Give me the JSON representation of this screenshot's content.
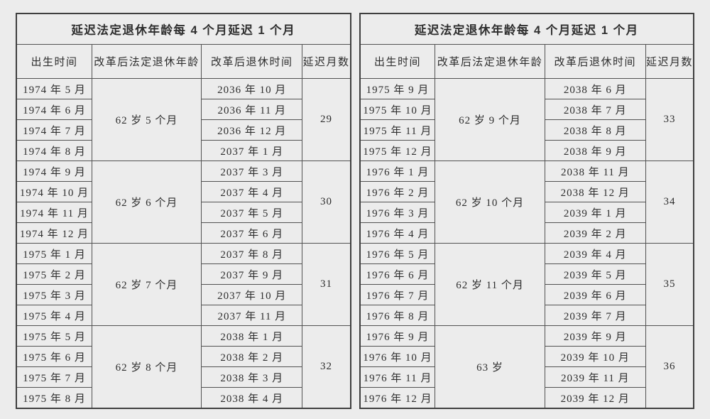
{
  "page": {
    "background_color": "#ececec",
    "border_color": "#3f3f3f",
    "text_color": "#2e2e2e"
  },
  "tables": [
    {
      "title": "延迟法定退休年龄每 4 个月延迟 1 个月",
      "columns": [
        "出生时间",
        "改革后法定退休年龄",
        "改革后退休时间",
        "延迟月数"
      ],
      "groups": [
        {
          "age": "62 岁 5 个月",
          "delay": "29",
          "rows": [
            {
              "birth": "1974 年 5 月",
              "retire": "2036 年 10 月"
            },
            {
              "birth": "1974 年 6 月",
              "retire": "2036 年 11 月"
            },
            {
              "birth": "1974 年 7 月",
              "retire": "2036 年 12 月"
            },
            {
              "birth": "1974 年 8 月",
              "retire": "2037 年 1 月"
            }
          ]
        },
        {
          "age": "62 岁 6 个月",
          "delay": "30",
          "rows": [
            {
              "birth": "1974 年 9 月",
              "retire": "2037 年 3 月"
            },
            {
              "birth": "1974 年 10 月",
              "retire": "2037 年 4 月"
            },
            {
              "birth": "1974 年 11 月",
              "retire": "2037 年 5 月"
            },
            {
              "birth": "1974 年 12 月",
              "retire": "2037 年 6 月"
            }
          ]
        },
        {
          "age": "62 岁 7 个月",
          "delay": "31",
          "rows": [
            {
              "birth": "1975 年 1 月",
              "retire": "2037 年 8 月"
            },
            {
              "birth": "1975 年 2 月",
              "retire": "2037 年 9 月"
            },
            {
              "birth": "1975 年 3 月",
              "retire": "2037 年 10 月"
            },
            {
              "birth": "1975 年 4 月",
              "retire": "2037 年 11 月"
            }
          ]
        },
        {
          "age": "62 岁 8 个月",
          "delay": "32",
          "rows": [
            {
              "birth": "1975 年 5 月",
              "retire": "2038 年 1 月"
            },
            {
              "birth": "1975 年 6 月",
              "retire": "2038 年 2 月"
            },
            {
              "birth": "1975 年 7 月",
              "retire": "2038 年 3 月"
            },
            {
              "birth": "1975 年 8 月",
              "retire": "2038 年 4 月"
            }
          ]
        }
      ]
    },
    {
      "title": "延迟法定退休年龄每 4 个月延迟 1 个月",
      "columns": [
        "出生时间",
        "改革后法定退休年龄",
        "改革后退休时间",
        "延迟月数"
      ],
      "groups": [
        {
          "age": "62 岁 9 个月",
          "delay": "33",
          "rows": [
            {
              "birth": "1975 年 9 月",
              "retire": "2038 年 6 月"
            },
            {
              "birth": "1975 年 10 月",
              "retire": "2038 年 7 月"
            },
            {
              "birth": "1975 年 11 月",
              "retire": "2038 年 8 月"
            },
            {
              "birth": "1975 年 12 月",
              "retire": "2038 年 9 月"
            }
          ]
        },
        {
          "age": "62 岁 10 个月",
          "delay": "34",
          "rows": [
            {
              "birth": "1976 年 1 月",
              "retire": "2038 年 11 月"
            },
            {
              "birth": "1976 年 2 月",
              "retire": "2038 年 12 月"
            },
            {
              "birth": "1976 年 3 月",
              "retire": "2039 年 1 月"
            },
            {
              "birth": "1976 年 4 月",
              "retire": "2039 年 2 月"
            }
          ]
        },
        {
          "age": "62 岁 11 个月",
          "delay": "35",
          "rows": [
            {
              "birth": "1976 年 5 月",
              "retire": "2039 年 4 月"
            },
            {
              "birth": "1976 年 6 月",
              "retire": "2039 年 5 月"
            },
            {
              "birth": "1976 年 7 月",
              "retire": "2039 年 6 月"
            },
            {
              "birth": "1976 年 8 月",
              "retire": "2039 年 7 月"
            }
          ]
        },
        {
          "age": "63 岁",
          "delay": "36",
          "rows": [
            {
              "birth": "1976 年 9 月",
              "retire": "2039 年 9 月"
            },
            {
              "birth": "1976 年 10 月",
              "retire": "2039 年 10 月"
            },
            {
              "birth": "1976 年 11 月",
              "retire": "2039 年 11 月"
            },
            {
              "birth": "1976 年 12 月",
              "retire": "2039 年 12 月"
            }
          ]
        }
      ]
    }
  ]
}
